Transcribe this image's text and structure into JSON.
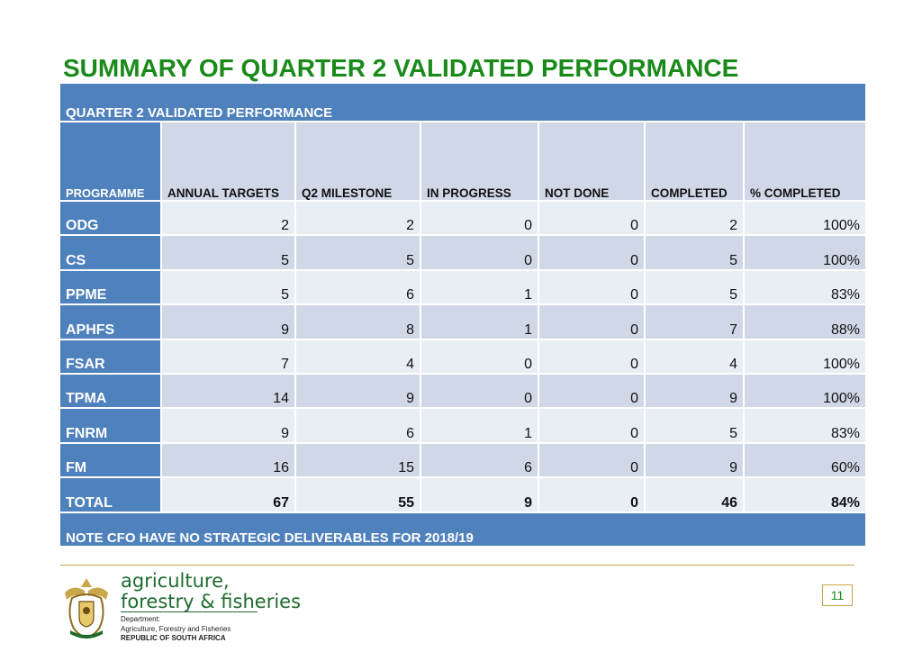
{
  "title": "SUMMARY OF QUARTER 2 VALIDATED PERFORMANCE",
  "table": {
    "band_label": "QUARTER 2 VALIDATED PERFORMANCE",
    "headers": [
      "PROGRAMME",
      "ANNUAL TARGETS",
      "Q2 MILESTONE",
      "IN PROGRESS",
      "NOT DONE",
      "COMPLETED",
      "%  COMPLETED"
    ],
    "rows": [
      [
        "ODG",
        "2",
        "2",
        "0",
        "0",
        "2",
        "100%"
      ],
      [
        "CS",
        "5",
        "5",
        "0",
        "0",
        "5",
        "100%"
      ],
      [
        "PPME",
        "5",
        "6",
        "1",
        "0",
        "5",
        "83%"
      ],
      [
        "APHFS",
        "9",
        "8",
        "1",
        "0",
        "7",
        "88%"
      ],
      [
        "FSAR",
        "7",
        "4",
        "0",
        "0",
        "4",
        "100%"
      ],
      [
        "TPMA",
        "14",
        "9",
        "0",
        "0",
        "9",
        "100%"
      ],
      [
        "FNRM",
        "9",
        "6",
        "1",
        "0",
        "5",
        "83%"
      ],
      [
        "FM",
        "16",
        "15",
        "6",
        "0",
        "9",
        "60%"
      ]
    ],
    "total": [
      "TOTAL",
      "67",
      "55",
      "9",
      "0",
      "46",
      "84%"
    ],
    "note": "NOTE CFO HAVE NO STRATEGIC DELIVERABLES FOR 2018/19"
  },
  "footer": {
    "dept_line1": "agriculture,",
    "dept_line2": "forestry & fisheries",
    "small_line1": "Department:",
    "small_line2": "Agriculture, Forestry and Fisheries",
    "small_line3": "REPUBLIC OF SOUTH AFRICA",
    "page_number": "11",
    "logo_icon": "coat-of-arms-icon"
  },
  "colors": {
    "title_green": "#1a8a1a",
    "header_blue": "#4f81bd",
    "row_light": "#e9edf4",
    "row_dark": "#d0d8e8"
  }
}
